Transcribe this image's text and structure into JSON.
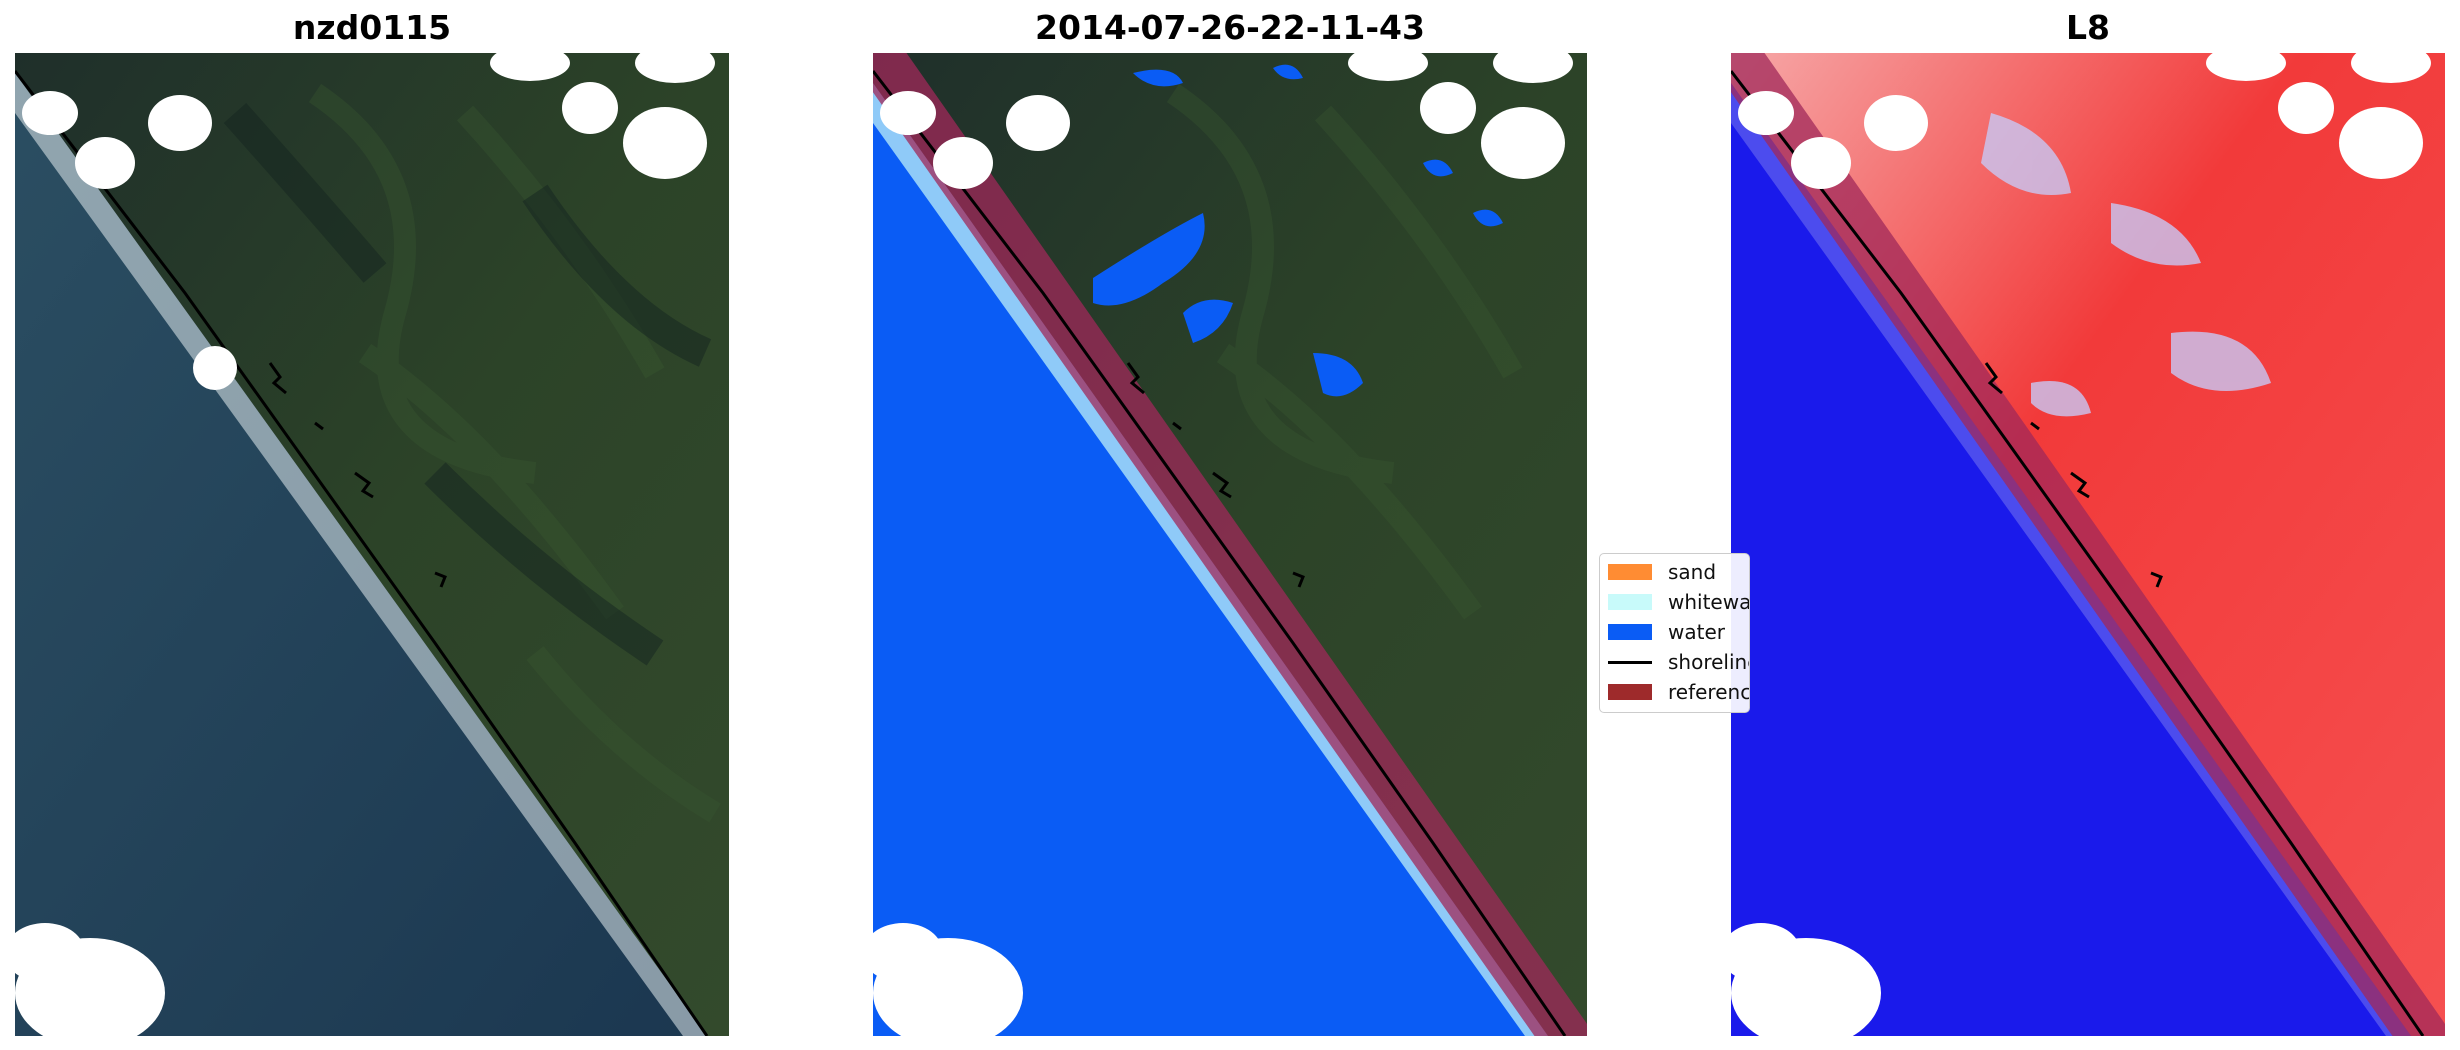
{
  "panels": [
    {
      "title": "nzd0115",
      "view": "true-colour satellite image"
    },
    {
      "title": "2014-07-26-22-11-43",
      "view": "classified image"
    },
    {
      "title": "L8",
      "view": "water index image"
    }
  ],
  "legend": {
    "items": [
      {
        "label": "sand",
        "color": "#ff8c33"
      },
      {
        "label": "whitewater",
        "color": "#c8fafa"
      },
      {
        "label": "water",
        "color": "#0a5cf5"
      },
      {
        "label": "shoreline",
        "color": "#000000"
      },
      {
        "label": "reference shoreline buffer",
        "color": "#9e2a2b"
      }
    ]
  },
  "colors": {
    "ocean": "#21405a",
    "land": "#263a25",
    "cloud": "#ffffff",
    "surf": "#e8eef0",
    "buffer": "#a0285a",
    "index_water": "#1010e6",
    "index_land": "#f22a2a"
  }
}
